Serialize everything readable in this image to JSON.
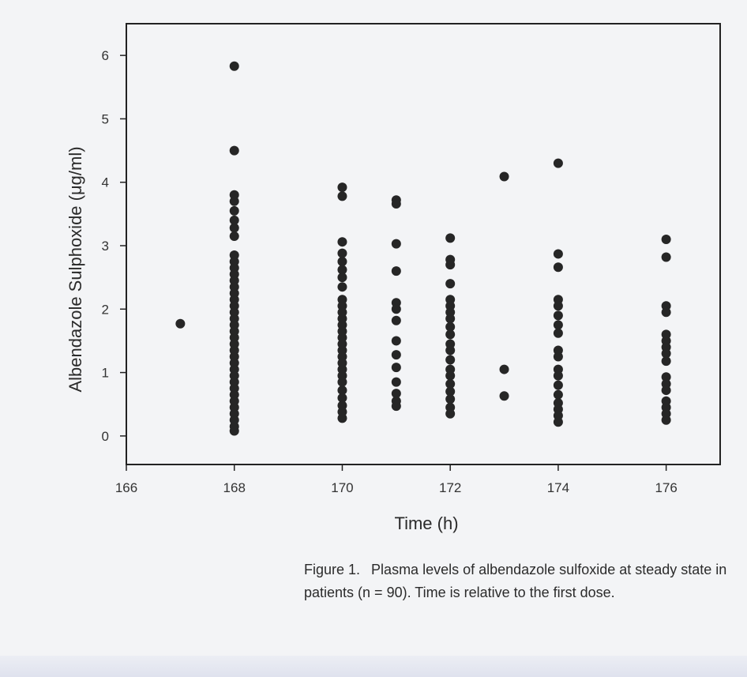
{
  "chart_data": {
    "type": "scatter",
    "xlabel": "Time (h)",
    "ylabel": "Albendazole Sulphoxide (μg/ml)",
    "xlim": [
      166,
      177
    ],
    "ylim": [
      -0.45,
      6.5
    ],
    "x_ticks": [
      166,
      168,
      170,
      172,
      174,
      176
    ],
    "y_ticks": [
      0,
      1,
      2,
      3,
      4,
      5,
      6
    ],
    "grid": false,
    "legend": "none",
    "marker_color": "#262626",
    "points": [
      {
        "x": 167,
        "y": 1.77
      },
      {
        "x": 168,
        "y": 5.83
      },
      {
        "x": 168,
        "y": 4.5
      },
      {
        "x": 168,
        "y": 3.8
      },
      {
        "x": 168,
        "y": 3.7
      },
      {
        "x": 168,
        "y": 3.55
      },
      {
        "x": 168,
        "y": 3.4
      },
      {
        "x": 168,
        "y": 3.28
      },
      {
        "x": 168,
        "y": 3.15
      },
      {
        "x": 168,
        "y": 2.85
      },
      {
        "x": 168,
        "y": 2.75
      },
      {
        "x": 168,
        "y": 2.65
      },
      {
        "x": 168,
        "y": 2.55
      },
      {
        "x": 168,
        "y": 2.45
      },
      {
        "x": 168,
        "y": 2.35
      },
      {
        "x": 168,
        "y": 2.25
      },
      {
        "x": 168,
        "y": 2.15
      },
      {
        "x": 168,
        "y": 2.05
      },
      {
        "x": 168,
        "y": 1.95
      },
      {
        "x": 168,
        "y": 1.85
      },
      {
        "x": 168,
        "y": 1.75
      },
      {
        "x": 168,
        "y": 1.65
      },
      {
        "x": 168,
        "y": 1.55
      },
      {
        "x": 168,
        "y": 1.45
      },
      {
        "x": 168,
        "y": 1.35
      },
      {
        "x": 168,
        "y": 1.25
      },
      {
        "x": 168,
        "y": 1.15
      },
      {
        "x": 168,
        "y": 1.05
      },
      {
        "x": 168,
        "y": 0.95
      },
      {
        "x": 168,
        "y": 0.85
      },
      {
        "x": 168,
        "y": 0.75
      },
      {
        "x": 168,
        "y": 0.65
      },
      {
        "x": 168,
        "y": 0.55
      },
      {
        "x": 168,
        "y": 0.45
      },
      {
        "x": 168,
        "y": 0.35
      },
      {
        "x": 168,
        "y": 0.25
      },
      {
        "x": 168,
        "y": 0.15
      },
      {
        "x": 168,
        "y": 0.08
      },
      {
        "x": 170,
        "y": 3.92
      },
      {
        "x": 170,
        "y": 3.78
      },
      {
        "x": 170,
        "y": 3.06
      },
      {
        "x": 170,
        "y": 2.88
      },
      {
        "x": 170,
        "y": 2.75
      },
      {
        "x": 170,
        "y": 2.62
      },
      {
        "x": 170,
        "y": 2.5
      },
      {
        "x": 170,
        "y": 2.35
      },
      {
        "x": 170,
        "y": 2.15
      },
      {
        "x": 170,
        "y": 2.05
      },
      {
        "x": 170,
        "y": 1.95
      },
      {
        "x": 170,
        "y": 1.85
      },
      {
        "x": 170,
        "y": 1.75
      },
      {
        "x": 170,
        "y": 1.65
      },
      {
        "x": 170,
        "y": 1.55
      },
      {
        "x": 170,
        "y": 1.45
      },
      {
        "x": 170,
        "y": 1.35
      },
      {
        "x": 170,
        "y": 1.25
      },
      {
        "x": 170,
        "y": 1.15
      },
      {
        "x": 170,
        "y": 1.05
      },
      {
        "x": 170,
        "y": 0.95
      },
      {
        "x": 170,
        "y": 0.85
      },
      {
        "x": 170,
        "y": 0.72
      },
      {
        "x": 170,
        "y": 0.6
      },
      {
        "x": 170,
        "y": 0.48
      },
      {
        "x": 170,
        "y": 0.38
      },
      {
        "x": 170,
        "y": 0.28
      },
      {
        "x": 171,
        "y": 3.72
      },
      {
        "x": 171,
        "y": 3.66
      },
      {
        "x": 171,
        "y": 3.03
      },
      {
        "x": 171,
        "y": 2.6
      },
      {
        "x": 171,
        "y": 2.1
      },
      {
        "x": 171,
        "y": 2.0
      },
      {
        "x": 171,
        "y": 1.82
      },
      {
        "x": 171,
        "y": 1.5
      },
      {
        "x": 171,
        "y": 1.28
      },
      {
        "x": 171,
        "y": 1.08
      },
      {
        "x": 171,
        "y": 0.85
      },
      {
        "x": 171,
        "y": 0.67
      },
      {
        "x": 171,
        "y": 0.55
      },
      {
        "x": 171,
        "y": 0.47
      },
      {
        "x": 172,
        "y": 3.12
      },
      {
        "x": 172,
        "y": 2.78
      },
      {
        "x": 172,
        "y": 2.7
      },
      {
        "x": 172,
        "y": 2.4
      },
      {
        "x": 172,
        "y": 2.15
      },
      {
        "x": 172,
        "y": 2.05
      },
      {
        "x": 172,
        "y": 1.95
      },
      {
        "x": 172,
        "y": 1.85
      },
      {
        "x": 172,
        "y": 1.72
      },
      {
        "x": 172,
        "y": 1.6
      },
      {
        "x": 172,
        "y": 1.45
      },
      {
        "x": 172,
        "y": 1.35
      },
      {
        "x": 172,
        "y": 1.2
      },
      {
        "x": 172,
        "y": 1.05
      },
      {
        "x": 172,
        "y": 0.95
      },
      {
        "x": 172,
        "y": 0.82
      },
      {
        "x": 172,
        "y": 0.7
      },
      {
        "x": 172,
        "y": 0.58
      },
      {
        "x": 172,
        "y": 0.45
      },
      {
        "x": 172,
        "y": 0.35
      },
      {
        "x": 173,
        "y": 4.09
      },
      {
        "x": 173,
        "y": 1.05
      },
      {
        "x": 173,
        "y": 0.63
      },
      {
        "x": 174,
        "y": 4.3
      },
      {
        "x": 174,
        "y": 2.87
      },
      {
        "x": 174,
        "y": 2.66
      },
      {
        "x": 174,
        "y": 2.15
      },
      {
        "x": 174,
        "y": 2.05
      },
      {
        "x": 174,
        "y": 1.9
      },
      {
        "x": 174,
        "y": 1.75
      },
      {
        "x": 174,
        "y": 1.62
      },
      {
        "x": 174,
        "y": 1.35
      },
      {
        "x": 174,
        "y": 1.25
      },
      {
        "x": 174,
        "y": 1.05
      },
      {
        "x": 174,
        "y": 0.95
      },
      {
        "x": 174,
        "y": 0.8
      },
      {
        "x": 174,
        "y": 0.65
      },
      {
        "x": 174,
        "y": 0.52
      },
      {
        "x": 174,
        "y": 0.42
      },
      {
        "x": 174,
        "y": 0.32
      },
      {
        "x": 174,
        "y": 0.22
      },
      {
        "x": 176,
        "y": 3.1
      },
      {
        "x": 176,
        "y": 2.82
      },
      {
        "x": 176,
        "y": 2.05
      },
      {
        "x": 176,
        "y": 1.95
      },
      {
        "x": 176,
        "y": 1.6
      },
      {
        "x": 176,
        "y": 1.5
      },
      {
        "x": 176,
        "y": 1.4
      },
      {
        "x": 176,
        "y": 1.3
      },
      {
        "x": 176,
        "y": 1.18
      },
      {
        "x": 176,
        "y": 0.93
      },
      {
        "x": 176,
        "y": 0.82
      },
      {
        "x": 176,
        "y": 0.72
      },
      {
        "x": 176,
        "y": 0.55
      },
      {
        "x": 176,
        "y": 0.45
      },
      {
        "x": 176,
        "y": 0.35
      },
      {
        "x": 176,
        "y": 0.25
      }
    ]
  },
  "caption": {
    "label": "Figure 1.",
    "text": "Plasma levels of albendazole sulfoxide at steady state in patients (n = 90). Time is relative to the first dose."
  }
}
